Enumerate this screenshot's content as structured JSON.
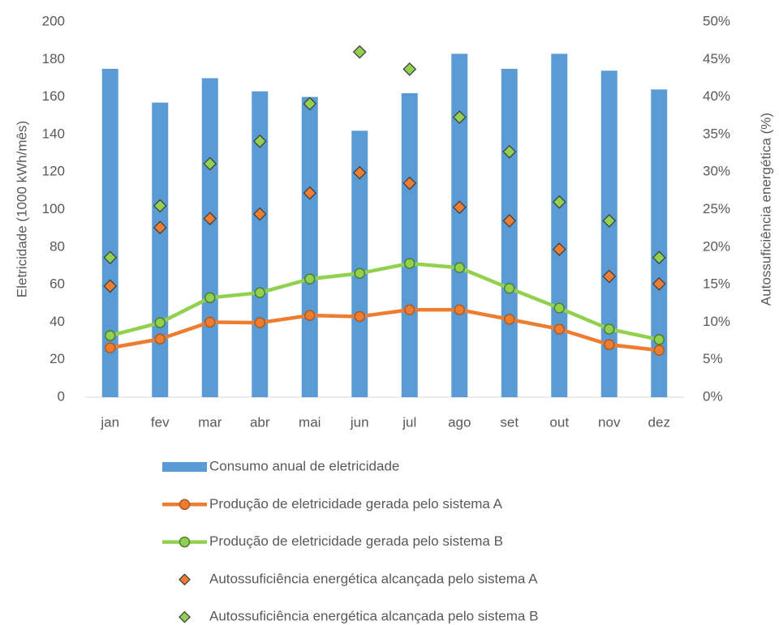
{
  "chart_data": {
    "type": "bar",
    "categories": [
      "jan",
      "fev",
      "mar",
      "abr",
      "mai",
      "jun",
      "jul",
      "ago",
      "set",
      "out",
      "nov",
      "dez"
    ],
    "y_label": "Eletricidade (1000 kWh/mês)",
    "y2_label": "Autossuficiência energética (%)",
    "ylim": [
      0,
      200
    ],
    "yticks": [
      0,
      20,
      40,
      60,
      80,
      100,
      120,
      140,
      160,
      180,
      200
    ],
    "y2lim": [
      0,
      50
    ],
    "y2ticks": [
      {
        "value": 0,
        "label": "0%"
      },
      {
        "value": 5,
        "label": "5%"
      },
      {
        "value": 10,
        "label": "10%"
      },
      {
        "value": 15,
        "label": "15%"
      },
      {
        "value": 20,
        "label": "20%"
      },
      {
        "value": 25,
        "label": "25%"
      },
      {
        "value": 30,
        "label": "30%"
      },
      {
        "value": 35,
        "label": "35%"
      },
      {
        "value": 40,
        "label": "40%"
      },
      {
        "value": 45,
        "label": "45%"
      },
      {
        "value": 50,
        "label": "50%"
      }
    ],
    "grid": false,
    "legend": "bottom",
    "series": [
      {
        "name": "Consumo anual de eletricidade",
        "type": "bar",
        "color": "#5b9bd5",
        "values": [
          175,
          157,
          170,
          163,
          160,
          142,
          162,
          183,
          175,
          183,
          174,
          164
        ]
      },
      {
        "name": "Produção de eletricidade gerada pelo sistema A",
        "type": "line",
        "color": "#ed7d31",
        "values": [
          26.3,
          31,
          40,
          39.7,
          43.6,
          43,
          46.6,
          46.6,
          41.5,
          36.3,
          28,
          25
        ]
      },
      {
        "name": "Produção de eletricidade gerada pelo sistema B",
        "type": "line",
        "color": "#92d050",
        "values": [
          32.8,
          39.7,
          53,
          55.7,
          63,
          66,
          71.3,
          69,
          58,
          47.5,
          36.3,
          30.7
        ]
      },
      {
        "name": "Autossuficiência energética alcançada pelo sistema A",
        "type": "scatter",
        "color": "#ed7d31",
        "axis": "y2",
        "values": [
          14.8,
          22.6,
          23.8,
          24.4,
          27.2,
          29.9,
          28.5,
          25.3,
          23.5,
          19.7,
          16.1,
          15.1
        ]
      },
      {
        "name": "Autossuficiência energética alcançada pelo sistema B",
        "type": "scatter",
        "color": "#92d050",
        "axis": "y2",
        "values": [
          18.6,
          25.5,
          31.1,
          34.1,
          39.1,
          46,
          43.7,
          37.3,
          32.7,
          26,
          23.5,
          18.6
        ]
      }
    ]
  }
}
